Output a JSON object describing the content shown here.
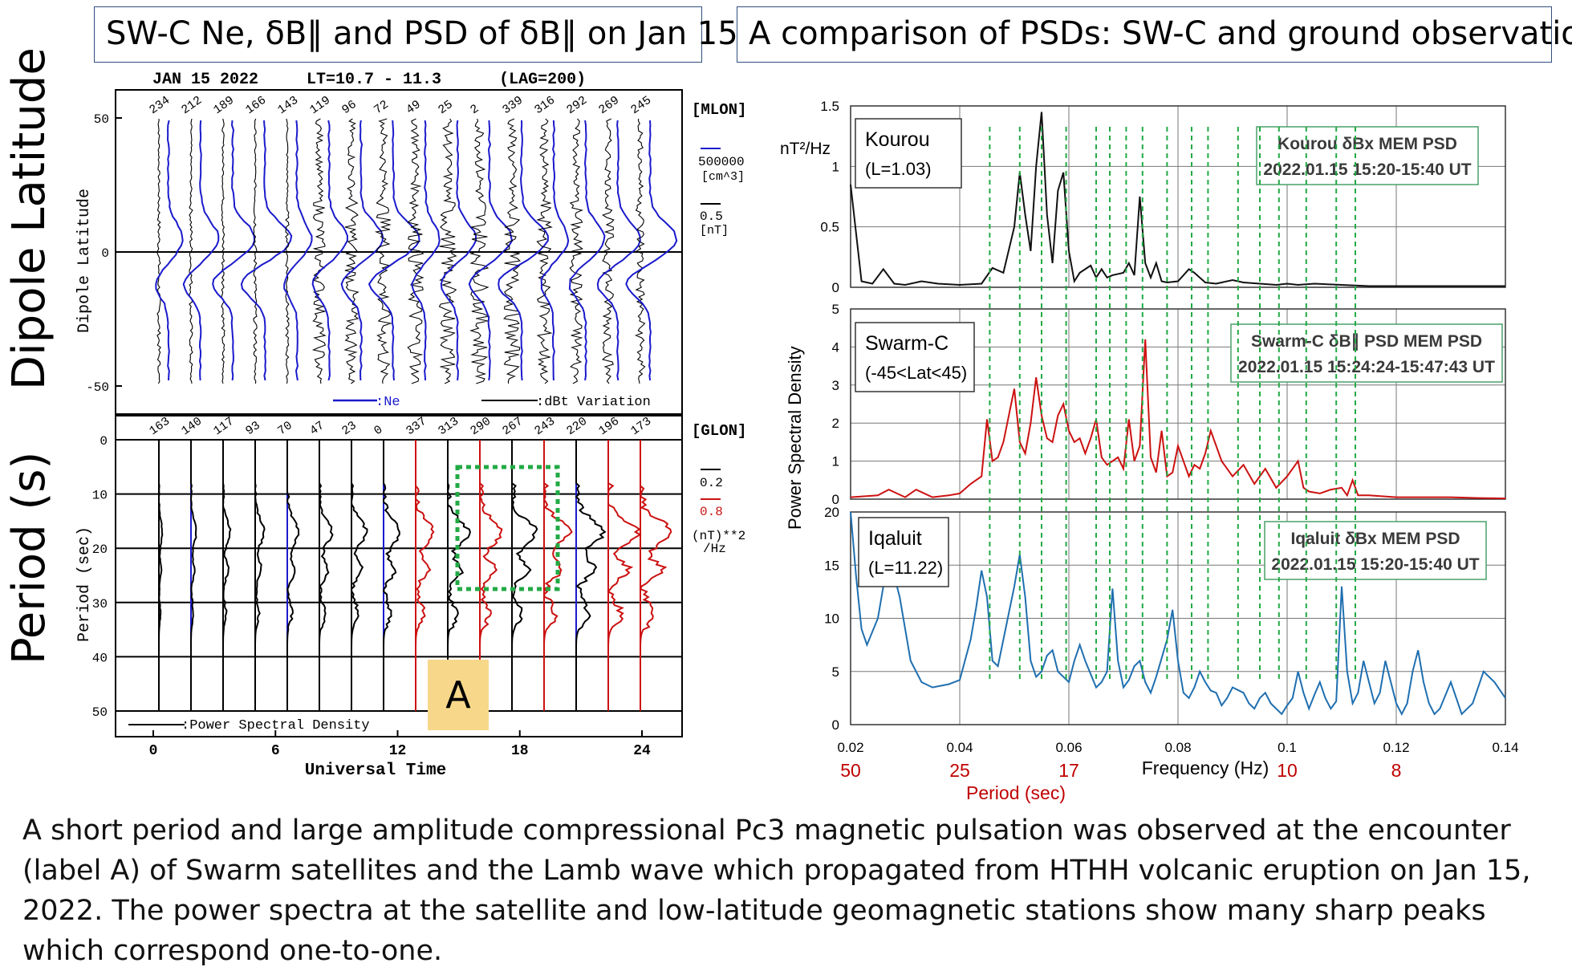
{
  "left_title": "SW-C  Ne, δB‖  and PSD  of δB‖ on Jan 15",
  "right_title": "A comparison of PSDs:  SW-C and ground observations",
  "side_label_top": "Dipole Latitude",
  "side_label_bottom": "Period (s)",
  "left_plot": {
    "header": "JAN 15 2022     LT=10.7 - 11.3      (LAG=200)",
    "top_panel": {
      "ylabel": "Dipole Latitude",
      "yticks": [
        "50",
        "0",
        "-50"
      ],
      "mlon_labels": [
        "234",
        "212",
        "189",
        "166",
        "143",
        "119",
        "96",
        "72",
        "49",
        "25",
        "2",
        "339",
        "316",
        "292",
        "269",
        "245"
      ],
      "mlon_tag": "[MLON]",
      "scale_ne": "500000",
      "scale_ne_unit": "[cm^3]",
      "scale_db": "0.5",
      "scale_db_unit": "[nT]",
      "legend_ne": ":Ne",
      "legend_db": ":dBt Variation",
      "colors": {
        "ne": "#1a1acc",
        "db": "#000000"
      }
    },
    "bottom_panel": {
      "ylabel": "Period (sec)",
      "yticks": [
        "0",
        "10",
        "20",
        "30",
        "40",
        "50"
      ],
      "glon_labels": [
        "163",
        "140",
        "117",
        "93",
        "70",
        "47",
        "23",
        "0",
        "337",
        "313",
        "290",
        "267",
        "243",
        "220",
        "196",
        "173"
      ],
      "glon_tag": "[GLON]",
      "scale_black": "0.2",
      "scale_red": "0.8",
      "scale_unit_1": "(nT)**2",
      "scale_unit_2": "/Hz",
      "legend_psd": ":Power Spectral Density",
      "label_a": "A",
      "xlabel": "Universal Time",
      "xticks": [
        "0",
        "6",
        "12",
        "18",
        "24"
      ],
      "colors": {
        "red": "#cc1111",
        "blue": "#1a1acc",
        "box": "#22aa44",
        "label_a_bg": "#f7d88a"
      }
    }
  },
  "chart_data": [
    {
      "type": "line",
      "panel": "Kourou",
      "label_name": "Kourou",
      "label_l": "(L=1.03)",
      "legend_line1": "Kourou δBx MEM PSD",
      "legend_line2": "2022.01.15 15:20-15:40 UT",
      "yunit": "nT²/Hz",
      "yticks": [
        "0",
        "0.5",
        "1",
        "1.5"
      ],
      "ylim": [
        0,
        1.5
      ],
      "color": "#111111",
      "x": [
        0.02,
        0.022,
        0.024,
        0.026,
        0.028,
        0.03,
        0.033,
        0.036,
        0.04,
        0.044,
        0.046,
        0.048,
        0.05,
        0.051,
        0.052,
        0.053,
        0.054,
        0.055,
        0.056,
        0.057,
        0.058,
        0.059,
        0.06,
        0.061,
        0.062,
        0.064,
        0.065,
        0.066,
        0.067,
        0.068,
        0.07,
        0.071,
        0.072,
        0.073,
        0.074,
        0.075,
        0.076,
        0.077,
        0.078,
        0.08,
        0.082,
        0.083,
        0.085,
        0.087,
        0.09,
        0.092,
        0.095,
        0.098,
        0.1,
        0.102,
        0.105,
        0.11,
        0.115,
        0.12,
        0.13,
        0.14
      ],
      "y": [
        0.85,
        0.05,
        0.03,
        0.15,
        0.03,
        0.02,
        0.05,
        0.03,
        0.02,
        0.03,
        0.16,
        0.12,
        0.5,
        0.95,
        0.6,
        0.3,
        1.0,
        1.45,
        0.6,
        0.2,
        0.8,
        0.95,
        0.3,
        0.05,
        0.12,
        0.18,
        0.08,
        0.15,
        0.08,
        0.1,
        0.12,
        0.2,
        0.1,
        0.75,
        0.2,
        0.08,
        0.2,
        0.05,
        0.04,
        0.05,
        0.15,
        0.12,
        0.04,
        0.03,
        0.06,
        0.04,
        0.03,
        0.02,
        0.03,
        0.02,
        0.03,
        0.02,
        0.01,
        0.01,
        0.01,
        0.01
      ]
    },
    {
      "type": "line",
      "panel": "Swarm-C",
      "label_name": "Swarm-C",
      "label_l": "(-45<Lat<45)",
      "legend_line1": "Swarm-C  δB∥  PSD MEM PSD",
      "legend_line2": "2022.01.15 15:24:24-15:47:43 UT",
      "ylabel": "Power Spectral Density",
      "yticks": [
        "0",
        "1",
        "2",
        "3",
        "4",
        "5"
      ],
      "ylim": [
        0,
        5
      ],
      "color": "#cc1111",
      "x": [
        0.02,
        0.025,
        0.027,
        0.03,
        0.032,
        0.035,
        0.038,
        0.04,
        0.042,
        0.044,
        0.045,
        0.046,
        0.047,
        0.048,
        0.05,
        0.051,
        0.052,
        0.053,
        0.054,
        0.055,
        0.056,
        0.057,
        0.058,
        0.059,
        0.06,
        0.061,
        0.062,
        0.063,
        0.064,
        0.065,
        0.066,
        0.067,
        0.068,
        0.069,
        0.07,
        0.071,
        0.072,
        0.073,
        0.074,
        0.075,
        0.076,
        0.077,
        0.078,
        0.079,
        0.08,
        0.082,
        0.083,
        0.084,
        0.085,
        0.086,
        0.088,
        0.09,
        0.092,
        0.094,
        0.096,
        0.098,
        0.1,
        0.102,
        0.103,
        0.104,
        0.106,
        0.108,
        0.11,
        0.111,
        0.112,
        0.113,
        0.115,
        0.12,
        0.125,
        0.13,
        0.135,
        0.14
      ],
      "y": [
        0.05,
        0.1,
        0.25,
        0.05,
        0.25,
        0.05,
        0.1,
        0.15,
        0.4,
        0.6,
        2.1,
        1.0,
        1.1,
        1.5,
        2.9,
        1.5,
        1.2,
        2.0,
        3.2,
        2.2,
        1.6,
        1.5,
        2.2,
        2.5,
        1.8,
        1.5,
        1.6,
        1.2,
        1.6,
        2.1,
        1.1,
        0.9,
        1.0,
        1.1,
        0.8,
        2.1,
        1.0,
        1.4,
        4.2,
        1.1,
        0.7,
        1.8,
        0.6,
        0.7,
        1.4,
        0.6,
        0.9,
        0.8,
        1.2,
        1.8,
        1.0,
        0.6,
        0.9,
        0.4,
        0.8,
        0.3,
        0.6,
        1.0,
        0.3,
        0.2,
        0.15,
        0.25,
        0.3,
        0.1,
        0.5,
        0.1,
        0.1,
        0.05,
        0.05,
        0.05,
        0.03,
        0.02
      ]
    },
    {
      "type": "line",
      "panel": "Iqaluit",
      "label_name": "Iqaluit",
      "label_l": "(L=11.22)",
      "legend_line1": "Iqaluit δBx MEM PSD",
      "legend_line2": "2022.01.15 15:20-15:40 UT",
      "yticks": [
        "0",
        "5",
        "10",
        "15",
        "20"
      ],
      "ylim": [
        0,
        20
      ],
      "color": "#1f6fb0",
      "xlabel": "Frequency (Hz)",
      "xticks": [
        "0.02",
        "0.04",
        "0.06",
        "0.08",
        "0.1",
        "0.12",
        "0.14"
      ],
      "xlim": [
        0.02,
        0.14
      ],
      "period_label": "Period (sec)",
      "period_ticks": [
        [
          "50",
          0.02
        ],
        [
          "25",
          0.04
        ],
        [
          "17",
          0.06
        ],
        [
          "10",
          0.1
        ],
        [
          "8",
          0.12
        ]
      ],
      "x": [
        0.02,
        0.021,
        0.022,
        0.023,
        0.025,
        0.027,
        0.029,
        0.031,
        0.033,
        0.035,
        0.038,
        0.04,
        0.042,
        0.043,
        0.044,
        0.045,
        0.046,
        0.047,
        0.048,
        0.05,
        0.051,
        0.052,
        0.053,
        0.054,
        0.055,
        0.056,
        0.057,
        0.058,
        0.06,
        0.061,
        0.062,
        0.063,
        0.065,
        0.066,
        0.067,
        0.068,
        0.069,
        0.07,
        0.071,
        0.072,
        0.073,
        0.074,
        0.075,
        0.076,
        0.078,
        0.079,
        0.08,
        0.081,
        0.082,
        0.083,
        0.084,
        0.085,
        0.086,
        0.087,
        0.088,
        0.089,
        0.09,
        0.092,
        0.093,
        0.094,
        0.095,
        0.096,
        0.097,
        0.098,
        0.099,
        0.1,
        0.101,
        0.102,
        0.103,
        0.104,
        0.105,
        0.106,
        0.107,
        0.108,
        0.109,
        0.11,
        0.111,
        0.112,
        0.113,
        0.114,
        0.115,
        0.116,
        0.117,
        0.118,
        0.119,
        0.12,
        0.121,
        0.122,
        0.123,
        0.124,
        0.125,
        0.126,
        0.127,
        0.128,
        0.13,
        0.132,
        0.134,
        0.136,
        0.138,
        0.14
      ],
      "y": [
        20,
        14,
        9,
        7.5,
        10,
        16,
        12,
        6,
        4,
        3.5,
        3.8,
        4.2,
        8,
        11,
        14.5,
        12,
        6,
        5.5,
        8,
        13,
        16,
        12,
        6,
        4.5,
        5,
        6.5,
        7,
        5,
        4,
        6,
        7.5,
        6,
        3.5,
        4,
        5,
        12.8,
        6,
        3.5,
        4.2,
        5.5,
        6,
        4,
        3,
        4.5,
        8,
        10.8,
        6,
        3,
        2.5,
        3.5,
        5,
        4,
        3.2,
        3,
        1.8,
        2.5,
        3.5,
        3,
        2,
        1.5,
        2.5,
        3,
        2,
        1.5,
        1,
        1.8,
        2.5,
        5,
        3,
        1.5,
        2.8,
        4,
        2.5,
        1.5,
        2.2,
        13,
        5,
        2,
        3,
        6,
        4,
        2,
        3,
        6,
        4,
        2,
        1,
        2,
        5,
        7,
        4,
        2,
        1,
        1.5,
        4,
        1,
        2,
        5,
        4,
        2.5
      ]
    }
  ],
  "caption": "A short period and large amplitude compressional Pc3 magnetic pulsation was observed at the encounter (label A) of Swarm satellites and the Lamb wave which propagated from HTHH volcanic eruption on Jan 15, 2022. The power spectra at the satellite and low-latitude geomagnetic stations show many sharp peaks which correspond one-to-one.",
  "green_lines_hz": [
    0.0455,
    0.051,
    0.055,
    0.0595,
    0.065,
    0.0675,
    0.0705,
    0.0735,
    0.078,
    0.0825,
    0.0855,
    0.091,
    0.095,
    0.0985,
    0.1035,
    0.109,
    0.1125
  ]
}
